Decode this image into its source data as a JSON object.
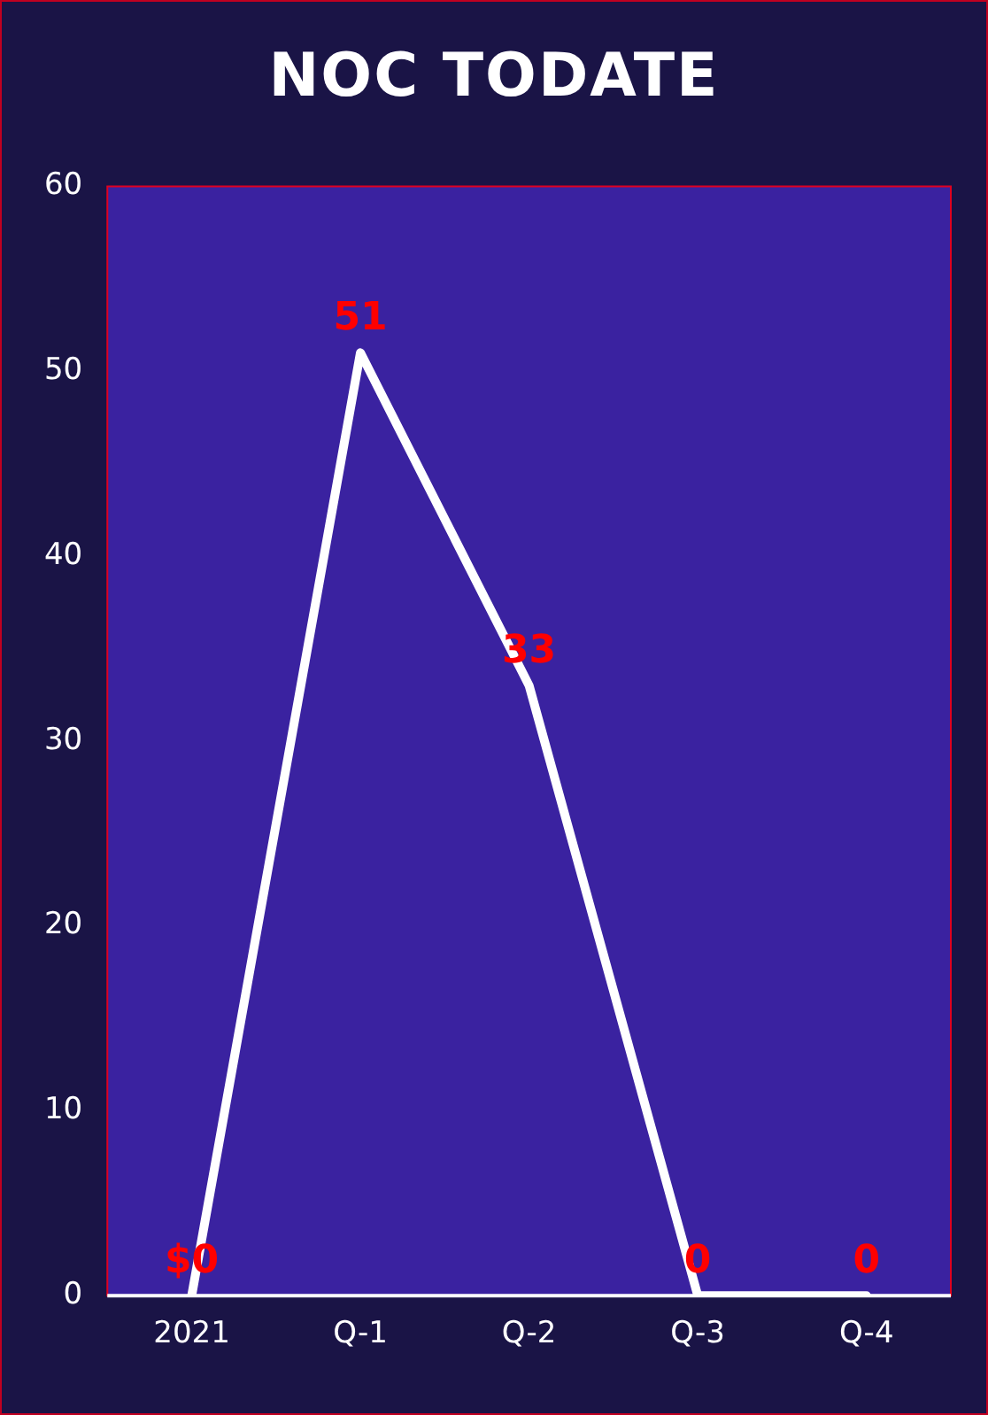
{
  "chart_data": {
    "type": "line",
    "title": "NOC TODATE",
    "categories": [
      "2021",
      "Q-1",
      "Q-2",
      "Q-3",
      "Q-4"
    ],
    "values": [
      0,
      51,
      33,
      0,
      0
    ],
    "value_labels": [
      "$0",
      "51",
      "33",
      "0",
      "0"
    ],
    "color": "#ffffff",
    "ylim": [
      0,
      60
    ],
    "yticks": [
      0,
      10,
      20,
      30,
      40,
      50,
      60
    ],
    "grid": false,
    "legend": false,
    "marker": "none",
    "line_style": "solid"
  }
}
